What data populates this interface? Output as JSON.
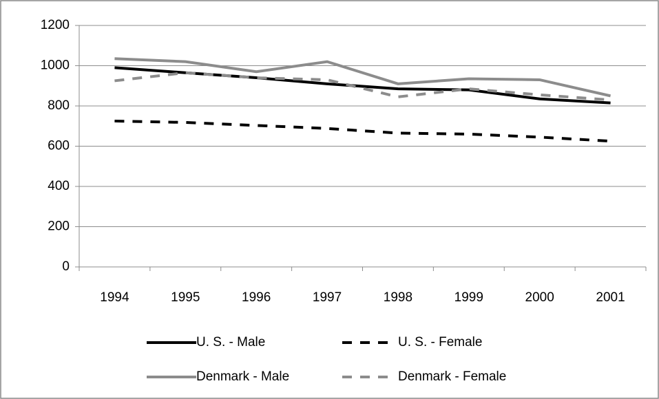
{
  "chart_data": {
    "type": "line",
    "categories": [
      "1994",
      "1995",
      "1996",
      "1997",
      "1998",
      "1999",
      "2000",
      "2001"
    ],
    "series": [
      {
        "name": "U. S. - Male",
        "color": "#000000",
        "dashed": false,
        "values": [
          990,
          965,
          940,
          910,
          885,
          880,
          835,
          815
        ]
      },
      {
        "name": "U. S. - Female",
        "color": "#000000",
        "dashed": true,
        "values": [
          725,
          718,
          703,
          688,
          665,
          660,
          645,
          625
        ]
      },
      {
        "name": "Denmark - Male",
        "color": "#8c8c8c",
        "dashed": false,
        "values": [
          1035,
          1020,
          970,
          1020,
          910,
          935,
          930,
          850
        ]
      },
      {
        "name": "Denmark - Female",
        "color": "#8c8c8c",
        "dashed": true,
        "values": [
          925,
          965,
          940,
          930,
          845,
          885,
          855,
          830
        ]
      }
    ],
    "ylim": [
      0,
      1200
    ],
    "yticks": [
      0,
      200,
      400,
      600,
      800,
      1000,
      1200
    ],
    "grid": true,
    "legend": "bottom"
  }
}
